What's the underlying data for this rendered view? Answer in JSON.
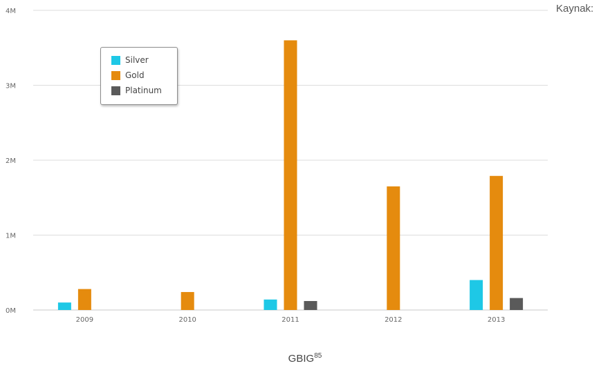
{
  "source_label": "Kaynak:",
  "caption": {
    "text": "GBIG",
    "superscript": "85"
  },
  "chart_data": {
    "type": "bar",
    "categories": [
      "2009",
      "2010",
      "2011",
      "2012",
      "2013"
    ],
    "series": [
      {
        "name": "Silver",
        "color": "#1ec8e6",
        "values": [
          0.1,
          0,
          0.14,
          0,
          0.4
        ]
      },
      {
        "name": "Gold",
        "color": "#e58b0e",
        "values": [
          0.28,
          0.24,
          3.6,
          1.65,
          1.79
        ]
      },
      {
        "name": "Platinum",
        "color": "#5a5a5a",
        "values": [
          0,
          0,
          0.12,
          0,
          0.16
        ]
      }
    ],
    "y_ticks": [
      "0M",
      "1M",
      "2M",
      "3M",
      "4M"
    ],
    "ylim": [
      0,
      4
    ],
    "grid": true,
    "legend_position": "top-left"
  }
}
